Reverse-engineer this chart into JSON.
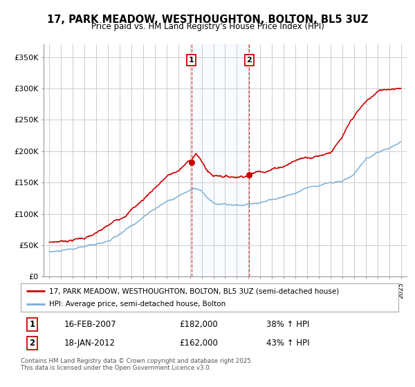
{
  "title": "17, PARK MEADOW, WESTHOUGHTON, BOLTON, BL5 3UZ",
  "subtitle": "Price paid vs. HM Land Registry's House Price Index (HPI)",
  "legend_line1": "17, PARK MEADOW, WESTHOUGHTON, BOLTON, BL5 3UZ (semi-detached house)",
  "legend_line2": "HPI: Average price, semi-detached house, Bolton",
  "annotation1_date": "16-FEB-2007",
  "annotation1_price": "£182,000",
  "annotation1_hpi": "38% ↑ HPI",
  "annotation2_date": "18-JAN-2012",
  "annotation2_price": "£162,000",
  "annotation2_hpi": "43% ↑ HPI",
  "sale1_year": 2007.12,
  "sale2_year": 2012.05,
  "sale1_price": 182000,
  "sale2_price": 162000,
  "red_color": "#cc0000",
  "blue_color": "#7aadd4",
  "grid_color": "#cccccc",
  "bg_color": "#ffffff",
  "fill_color": "#ddeeff",
  "footer": "Contains HM Land Registry data © Crown copyright and database right 2025.\nThis data is licensed under the Open Government Licence v3.0.",
  "ylim": [
    0,
    370000
  ],
  "xlim_start": 1994.5,
  "xlim_end": 2025.5,
  "hpi_control_x": [
    1995.0,
    1996.0,
    1997.0,
    1998.0,
    1999.0,
    2000.0,
    2001.0,
    2002.0,
    2003.0,
    2004.0,
    2005.0,
    2006.0,
    2007.0,
    2007.5,
    2008.0,
    2008.5,
    2009.0,
    2009.5,
    2010.0,
    2010.5,
    2011.0,
    2011.5,
    2012.0,
    2012.5,
    2013.0,
    2014.0,
    2015.0,
    2016.0,
    2017.0,
    2018.0,
    2019.0,
    2020.0,
    2021.0,
    2022.0,
    2023.0,
    2024.0,
    2025.0
  ],
  "hpi_control_y": [
    40000,
    41000,
    43000,
    46000,
    50000,
    56000,
    65000,
    78000,
    92000,
    106000,
    118000,
    128000,
    138000,
    140000,
    135000,
    122000,
    115000,
    112000,
    112000,
    110000,
    110000,
    110000,
    112000,
    114000,
    116000,
    120000,
    126000,
    132000,
    140000,
    148000,
    152000,
    155000,
    165000,
    185000,
    195000,
    205000,
    215000
  ],
  "red_control_x": [
    1995.0,
    1996.0,
    1997.0,
    1998.0,
    1999.0,
    2000.0,
    2001.0,
    2002.0,
    2003.0,
    2004.0,
    2005.0,
    2006.0,
    2007.0,
    2007.12,
    2007.5,
    2008.0,
    2008.5,
    2009.0,
    2009.5,
    2010.0,
    2010.5,
    2011.0,
    2011.5,
    2012.0,
    2012.05,
    2012.5,
    2013.0,
    2014.0,
    2015.0,
    2016.0,
    2017.0,
    2018.0,
    2019.0,
    2020.0,
    2021.0,
    2022.0,
    2023.0,
    2024.0,
    2025.0
  ],
  "red_control_y": [
    55000,
    57000,
    60000,
    63000,
    68000,
    77000,
    88000,
    105000,
    120000,
    140000,
    157000,
    165000,
    180000,
    182000,
    193000,
    178000,
    163000,
    155000,
    157000,
    156000,
    155000,
    156000,
    158000,
    161000,
    162000,
    164000,
    167000,
    172000,
    178000,
    187000,
    193000,
    197000,
    205000,
    225000,
    255000,
    275000,
    290000,
    295000,
    300000
  ]
}
